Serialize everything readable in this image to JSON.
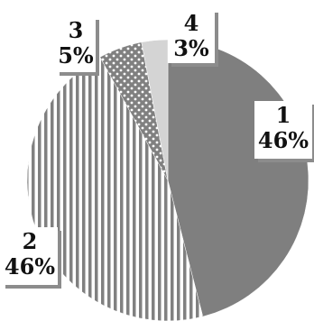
{
  "chart_data": {
    "type": "pie",
    "title": "",
    "start_angle_deg": 0,
    "direction": "clockwise",
    "slices": [
      {
        "name": "1",
        "value": 46,
        "label": "1",
        "pct": "46%",
        "fill": "#7f7f7f",
        "pattern": "solid"
      },
      {
        "name": "2",
        "value": 46,
        "label": "2",
        "pct": "46%",
        "fill": "#ffffff",
        "stroke": "#808080",
        "pattern": "vertical-stripes"
      },
      {
        "name": "3",
        "value": 5,
        "label": "3",
        "pct": "5%",
        "fill": "#808080",
        "pattern": "dots"
      },
      {
        "name": "4",
        "value": 3,
        "label": "4",
        "pct": "3%",
        "fill": "#d4d4d4",
        "pattern": "solid"
      }
    ],
    "legend": "none",
    "label_style": "category and percent, bold serif, white box with gray shadow"
  }
}
